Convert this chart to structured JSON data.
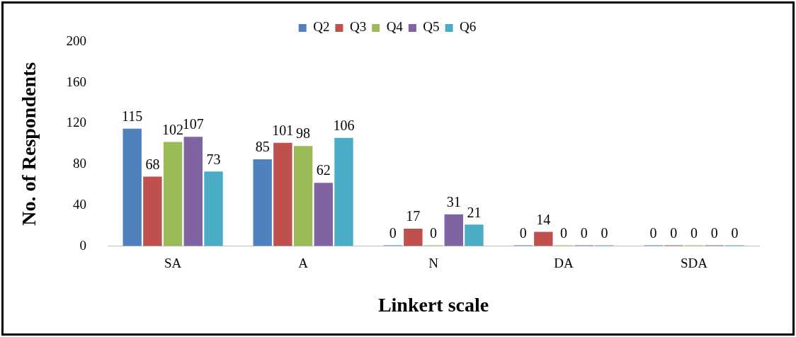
{
  "chart_data": {
    "type": "bar",
    "xlabel": "Linkert scale",
    "ylabel": "No. of Respondents",
    "categories": [
      "SA",
      "A",
      "N",
      "DA",
      "SDA"
    ],
    "series": [
      {
        "name": "Q2",
        "color": "#4f81bd",
        "values": [
          115,
          85,
          0,
          0,
          0
        ]
      },
      {
        "name": "Q3",
        "color": "#c0504d",
        "values": [
          68,
          101,
          17,
          14,
          0
        ]
      },
      {
        "name": "Q4",
        "color": "#9bbb59",
        "values": [
          102,
          98,
          0,
          0,
          0
        ]
      },
      {
        "name": "Q5",
        "color": "#8064a2",
        "values": [
          107,
          62,
          31,
          0,
          0
        ]
      },
      {
        "name": "Q6",
        "color": "#4bacc6",
        "values": [
          73,
          106,
          21,
          0,
          0
        ]
      }
    ],
    "ylim": [
      0,
      200
    ],
    "yticks": [
      0,
      40,
      80,
      120,
      160,
      200
    ],
    "grid": false,
    "legend": "top",
    "data_labels": true
  }
}
